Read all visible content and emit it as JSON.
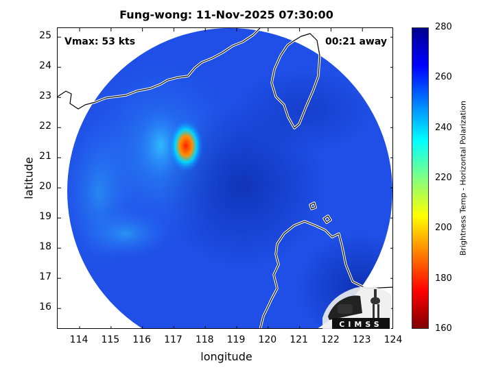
{
  "title": "Fung-wong: 11-Nov-2025 07:30:00",
  "vmax_label": "Vmax: 53 kts",
  "time_away_label": "00:21 away",
  "xlabel": "longitude",
  "ylabel": "latitude",
  "x_ticks": [
    "114",
    "115",
    "116",
    "117",
    "118",
    "119",
    "120",
    "121",
    "122",
    "123",
    "124"
  ],
  "y_ticks": [
    "25",
    "24",
    "23",
    "22",
    "21",
    "20",
    "19",
    "18",
    "17",
    "16"
  ],
  "colorbar": {
    "label": "Brightness Temp - Horizontal Polarization",
    "ticks": [
      "280",
      "260",
      "240",
      "220",
      "200",
      "180",
      "160"
    ],
    "range": [
      160,
      280
    ],
    "colors": [
      "#7f0000",
      "#ff0000",
      "#ff8000",
      "#ffff00",
      "#80ff80",
      "#00ffff",
      "#0080ff",
      "#0000ff",
      "#00008f"
    ]
  },
  "logo_text": "CIMSS",
  "map": {
    "lon_range": [
      113.3,
      124.0
    ],
    "lat_range": [
      15.3,
      25.3
    ],
    "swath_center": [
      119.0,
      20.3
    ],
    "warm_core": [
      117.35,
      21.1
    ]
  }
}
